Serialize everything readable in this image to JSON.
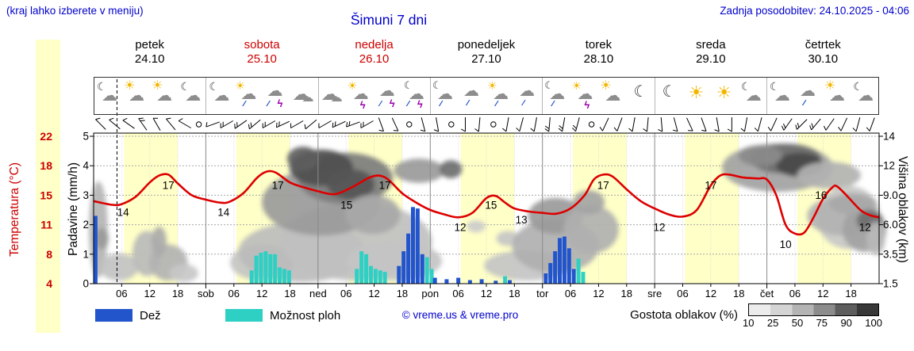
{
  "header": {
    "menu_hint": "(kraj lahko izberete v meniju)",
    "last_update": "Zadnja posodobitev: 24.10.2025 - 04:06",
    "title": "Šimuni 7 dni"
  },
  "days": [
    {
      "name": "petek",
      "date": "24.10",
      "highlight": false
    },
    {
      "name": "sobota",
      "date": "25.10",
      "highlight": true
    },
    {
      "name": "nedelja",
      "date": "26.10",
      "highlight": true
    },
    {
      "name": "ponedeljek",
      "date": "27.10",
      "highlight": false
    },
    {
      "name": "torek",
      "date": "28.10",
      "highlight": false
    },
    {
      "name": "sreda",
      "date": "29.10",
      "highlight": false
    },
    {
      "name": "četrtek",
      "date": "30.10",
      "highlight": false
    }
  ],
  "sky_icons": [
    "mooncloud",
    "suncloud",
    "suncloud",
    "mooncloud",
    "mooncloud",
    "sunrain",
    "storm",
    "cloud",
    "cloud",
    "sunstorm",
    "storm",
    "moonstorm",
    "moonrain",
    "rain",
    "sunrain",
    "rain",
    "moonrain",
    "sunstorm",
    "suncloud",
    "moon",
    "moon",
    "sun",
    "sun",
    "mooncloud",
    "mooncloud",
    "rain",
    "suncloud",
    "mooncloud"
  ],
  "wind_barbs": [
    [
      225,
      1
    ],
    [
      220,
      1
    ],
    [
      215,
      1
    ],
    [
      235,
      2
    ],
    [
      240,
      1
    ],
    [
      230,
      1
    ],
    [
      210,
      1
    ],
    [
      0,
      -1
    ],
    [
      160,
      1
    ],
    [
      150,
      2
    ],
    [
      145,
      2
    ],
    [
      140,
      2
    ],
    [
      150,
      2
    ],
    [
      155,
      2
    ],
    [
      150,
      1
    ],
    [
      140,
      1
    ],
    [
      150,
      1
    ],
    [
      155,
      2
    ],
    [
      160,
      2
    ],
    [
      150,
      2
    ],
    [
      70,
      1
    ],
    [
      65,
      1
    ],
    [
      0,
      -1
    ],
    [
      75,
      1
    ],
    [
      80,
      1
    ],
    [
      0,
      -1
    ],
    [
      90,
      1
    ],
    [
      95,
      1
    ],
    [
      0,
      -1
    ],
    [
      100,
      1
    ],
    [
      105,
      1
    ],
    [
      100,
      1
    ],
    [
      95,
      2
    ],
    [
      100,
      2
    ],
    [
      105,
      2
    ],
    [
      0,
      -1
    ],
    [
      115,
      1
    ],
    [
      110,
      1
    ],
    [
      100,
      1
    ],
    [
      95,
      1
    ],
    [
      85,
      1
    ],
    [
      75,
      1
    ],
    [
      65,
      1
    ],
    [
      70,
      1
    ],
    [
      80,
      1
    ],
    [
      90,
      1
    ],
    [
      100,
      1
    ],
    [
      105,
      1
    ],
    [
      115,
      1
    ],
    [
      125,
      2
    ],
    [
      135,
      2
    ],
    [
      130,
      2
    ],
    [
      125,
      1
    ],
    [
      115,
      1
    ],
    [
      105,
      1
    ],
    [
      110,
      1
    ]
  ],
  "axes": {
    "left_temp": {
      "title": "Temperatura (°C)",
      "labels": [
        "22",
        "18",
        "15",
        "11",
        "8",
        "4"
      ],
      "color": "#cc0000"
    },
    "left_precip": {
      "title": "Padavine (mm/h)",
      "labels": [
        "5",
        "4",
        "3",
        "2",
        "1",
        "0"
      ]
    },
    "right_cloud": {
      "title": "Višina oblakov (km)",
      "labels": [
        "14",
        "12",
        "9.0",
        "6.0",
        "3.5",
        "1.5"
      ]
    },
    "bottom": [
      "06",
      "12",
      "18",
      "sob",
      "06",
      "12",
      "18",
      "ned",
      "06",
      "12",
      "18",
      "pon",
      "06",
      "12",
      "18",
      "tor",
      "06",
      "12",
      "18",
      "sre",
      "06",
      "12",
      "18",
      "čet",
      "06",
      "12",
      "18"
    ]
  },
  "legend": {
    "rain_label": "Dež",
    "rain_color": "#2255cc",
    "showers_label": "Možnost ploh",
    "showers_color": "#2fd0c4",
    "copyright": "© vreme.us & vreme.pro",
    "cloud_density_label": "Gostota oblakov (%)",
    "cloud_scale_labels": [
      "10",
      "25",
      "50",
      "75",
      "90",
      "100"
    ]
  },
  "chart_data": {
    "type": "meteogram",
    "title": "Šimuni 7 dni",
    "x_unit": "hour",
    "x_range": [
      0,
      168
    ],
    "temp_axis_c": [
      4,
      8,
      11,
      15,
      18,
      22
    ],
    "precip_axis_mmh": [
      0,
      1,
      2,
      3,
      4,
      5
    ],
    "cloud_height_axis_km": [
      1.5,
      3.5,
      6.0,
      9.0,
      12,
      14
    ],
    "now_hour": 5,
    "daylight_hours": [
      6.5,
      18
    ],
    "temperature_c": [
      [
        0,
        14.2
      ],
      [
        4,
        13.7
      ],
      [
        6,
        13.8
      ],
      [
        9,
        14.8
      ],
      [
        12,
        16.3
      ],
      [
        14,
        17.0
      ],
      [
        16,
        17.1
      ],
      [
        18,
        16.2
      ],
      [
        21,
        15.0
      ],
      [
        24,
        14.4
      ],
      [
        27,
        14.0
      ],
      [
        29,
        14.1
      ],
      [
        32,
        15.2
      ],
      [
        35,
        16.8
      ],
      [
        37,
        17.4
      ],
      [
        39,
        17.3
      ],
      [
        42,
        16.3
      ],
      [
        45,
        15.8
      ],
      [
        48,
        15.4
      ],
      [
        51,
        15.1
      ],
      [
        53,
        15.3
      ],
      [
        56,
        16.0
      ],
      [
        59,
        16.8
      ],
      [
        61,
        17.0
      ],
      [
        63,
        16.6
      ],
      [
        66,
        15.2
      ],
      [
        69,
        14.0
      ],
      [
        72,
        13.0
      ],
      [
        75,
        12.4
      ],
      [
        78,
        12.0
      ],
      [
        81,
        12.6
      ],
      [
        84,
        14.6
      ],
      [
        86,
        14.9
      ],
      [
        88,
        14.0
      ],
      [
        90,
        13.2
      ],
      [
        93,
        12.8
      ],
      [
        96,
        12.6
      ],
      [
        99,
        12.5
      ],
      [
        102,
        13.2
      ],
      [
        105,
        15.0
      ],
      [
        107,
        16.6
      ],
      [
        109,
        17.1
      ],
      [
        111,
        16.9
      ],
      [
        114,
        15.6
      ],
      [
        117,
        14.2
      ],
      [
        120,
        13.2
      ],
      [
        123,
        12.4
      ],
      [
        126,
        12.1
      ],
      [
        129,
        13.0
      ],
      [
        132,
        16.0
      ],
      [
        134,
        17.0
      ],
      [
        136,
        17.1
      ],
      [
        139,
        16.8
      ],
      [
        142,
        16.7
      ],
      [
        144,
        16.6
      ],
      [
        146,
        15.0
      ],
      [
        148,
        11.0
      ],
      [
        150,
        10.1
      ],
      [
        152,
        10.2
      ],
      [
        154,
        12.0
      ],
      [
        156,
        14.5
      ],
      [
        158,
        15.8
      ],
      [
        159,
        15.9
      ],
      [
        161,
        15.0
      ],
      [
        164,
        13.0
      ],
      [
        166,
        12.3
      ],
      [
        168,
        12.0
      ]
    ],
    "temp_labels": [
      [
        6.3,
        14
      ],
      [
        16,
        17
      ],
      [
        27.8,
        14
      ],
      [
        39.4,
        17
      ],
      [
        54.1,
        15
      ],
      [
        62.3,
        17
      ],
      [
        78.4,
        12
      ],
      [
        85,
        15
      ],
      [
        91.5,
        13
      ],
      [
        109,
        17
      ],
      [
        121,
        12
      ],
      [
        132,
        17
      ],
      [
        148,
        10
      ],
      [
        155.6,
        16
      ],
      [
        165,
        12
      ]
    ],
    "rain_mmh": [
      [
        0.4,
        2.3
      ],
      [
        65.3,
        0.6
      ],
      [
        66.3,
        1.1
      ],
      [
        67.3,
        1.7
      ],
      [
        68.3,
        2.6
      ],
      [
        69.3,
        2.55
      ],
      [
        70.3,
        1.0
      ],
      [
        73,
        0.2
      ],
      [
        75.5,
        0.15
      ],
      [
        78,
        0.2
      ],
      [
        80.5,
        0.12
      ],
      [
        83,
        0.15
      ],
      [
        86,
        0.1
      ],
      [
        89,
        0.12
      ],
      [
        96.7,
        0.35
      ],
      [
        97.7,
        0.7
      ],
      [
        98.7,
        1.1
      ],
      [
        99.7,
        1.55
      ],
      [
        100.7,
        1.6
      ],
      [
        101.7,
        1.2
      ],
      [
        102.7,
        0.5
      ]
    ],
    "showers_mmh": [
      [
        33.8,
        0.45
      ],
      [
        34.8,
        0.95
      ],
      [
        35.8,
        1.05
      ],
      [
        36.8,
        1.1
      ],
      [
        37.8,
        1.0
      ],
      [
        38.8,
        1.0
      ],
      [
        39.8,
        0.55
      ],
      [
        40.8,
        0.5
      ],
      [
        41.8,
        0.45
      ],
      [
        56.3,
        0.5
      ],
      [
        57.3,
        1.1
      ],
      [
        58.3,
        1.0
      ],
      [
        59.3,
        0.6
      ],
      [
        60.3,
        0.5
      ],
      [
        61.3,
        0.45
      ],
      [
        62.3,
        0.4
      ],
      [
        71.3,
        0.9
      ],
      [
        72.3,
        0.5
      ],
      [
        88.0,
        0.25
      ],
      [
        103.7,
        0.85
      ],
      [
        104.7,
        0.4
      ]
    ],
    "clouds": [
      [
        1.0,
        0.64,
        2.0,
        0.32,
        "#b4b4b4"
      ],
      [
        1.7,
        0.7,
        1.5,
        0.07,
        "#9a9a9a"
      ],
      [
        5.4,
        0.89,
        4.2,
        0.09,
        "#c2c2c2"
      ],
      [
        11.4,
        0.8,
        3.1,
        0.15,
        "#bababa"
      ],
      [
        16.0,
        0.86,
        4.1,
        0.12,
        "#b2b2b2"
      ],
      [
        19.3,
        0.93,
        3.1,
        0.06,
        "#c8c8c8"
      ],
      [
        14.0,
        0.72,
        1.6,
        0.1,
        "#aaaaaa"
      ],
      [
        36.0,
        0.86,
        6.8,
        0.12,
        "#c4c4c4"
      ],
      [
        44.5,
        0.79,
        13.6,
        0.2,
        "#bcbcbc"
      ],
      [
        56.3,
        0.72,
        16.1,
        0.26,
        "#c0c0c0"
      ],
      [
        48.7,
        0.46,
        12.7,
        0.22,
        "#9a9a9a"
      ],
      [
        53.8,
        0.3,
        10.2,
        0.17,
        "#7c7c7c"
      ],
      [
        48.7,
        0.23,
        6.8,
        0.12,
        "#4e4e4e"
      ],
      [
        55.0,
        0.34,
        5.1,
        0.1,
        "#565656"
      ],
      [
        44.8,
        0.17,
        3.4,
        0.08,
        "#5e5e5e"
      ],
      [
        59.7,
        0.54,
        5.9,
        0.13,
        "#a8a8a8"
      ],
      [
        64.3,
        0.85,
        10.2,
        0.13,
        "#c4c4c4"
      ],
      [
        69.6,
        0.25,
        5.4,
        0.08,
        "#9a9a9a"
      ],
      [
        76.4,
        0.24,
        2.4,
        0.06,
        "#6e6e6e"
      ],
      [
        81.8,
        0.62,
        2.0,
        0.04,
        "#cccccc"
      ],
      [
        88.6,
        0.7,
        2.5,
        0.05,
        "#c6c6c6"
      ],
      [
        92.8,
        0.88,
        9.3,
        0.1,
        "#c4c4c4"
      ],
      [
        98.8,
        0.75,
        9.3,
        0.18,
        "#b0b0b0"
      ],
      [
        98.8,
        0.55,
        5.9,
        0.12,
        "#9a9a9a"
      ],
      [
        106.4,
        0.64,
        5.9,
        0.16,
        "#b0b0b0"
      ],
      [
        105.9,
        0.46,
        3.4,
        0.08,
        "#a4a4a4"
      ],
      [
        146.3,
        0.23,
        11.9,
        0.16,
        "#a2a2a2"
      ],
      [
        148.0,
        0.17,
        7.6,
        0.1,
        "#6e6e6e"
      ],
      [
        151.0,
        0.21,
        5.1,
        0.08,
        "#484848"
      ],
      [
        142.6,
        0.15,
        4.7,
        0.07,
        "#8a8a8a"
      ],
      [
        157.3,
        0.28,
        6.8,
        0.09,
        "#b2b2b2"
      ],
      [
        161.5,
        0.56,
        6.8,
        0.21,
        "#c8c8c8"
      ],
      [
        160.2,
        0.55,
        7.6,
        0.13,
        "#b2b2b2"
      ],
      [
        164.9,
        0.64,
        4.7,
        0.15,
        "#a2a2a2"
      ],
      [
        162.4,
        0.47,
        5.1,
        0.07,
        "#a8a8a8"
      ],
      [
        165.9,
        0.58,
        2.7,
        0.07,
        "#6e6e6e"
      ],
      [
        167.3,
        0.7,
        2.0,
        0.11,
        "#b8b8b8"
      ]
    ]
  }
}
